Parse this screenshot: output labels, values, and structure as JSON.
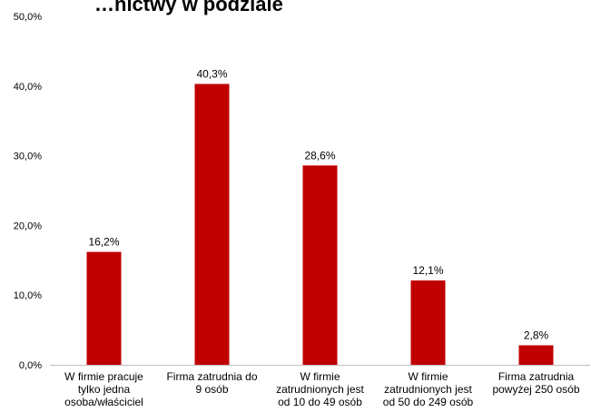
{
  "chart_data": {
    "type": "bar",
    "title": "…nictwy w podziale",
    "categories": [
      [
        "W firmie pracuje",
        "tylko jedna",
        "osoba/właściciel"
      ],
      [
        "Firma zatrudnia do",
        "9 osób"
      ],
      [
        "W firmie",
        "zatrudnionych jest",
        "od 10 do 49 osób"
      ],
      [
        "W firmie",
        "zatrudnionych jest",
        "od 50 do 249 osób"
      ],
      [
        "Firma zatrudnia",
        "powyżej 250 osób"
      ]
    ],
    "values": [
      16.2,
      40.3,
      28.6,
      12.1,
      2.8
    ],
    "value_labels": [
      "16,2%",
      "40,3%",
      "28,6%",
      "12,1%",
      "2,8%"
    ],
    "ylim": [
      0,
      50
    ],
    "yticks": [
      0,
      10,
      20,
      30,
      40,
      50
    ],
    "ytick_labels": [
      "0,0%",
      "10,0%",
      "20,0%",
      "30,0%",
      "40,0%",
      "50,0%"
    ],
    "grid": false,
    "bar_color": "#c00000",
    "axis_color": "#bfbfbf"
  }
}
